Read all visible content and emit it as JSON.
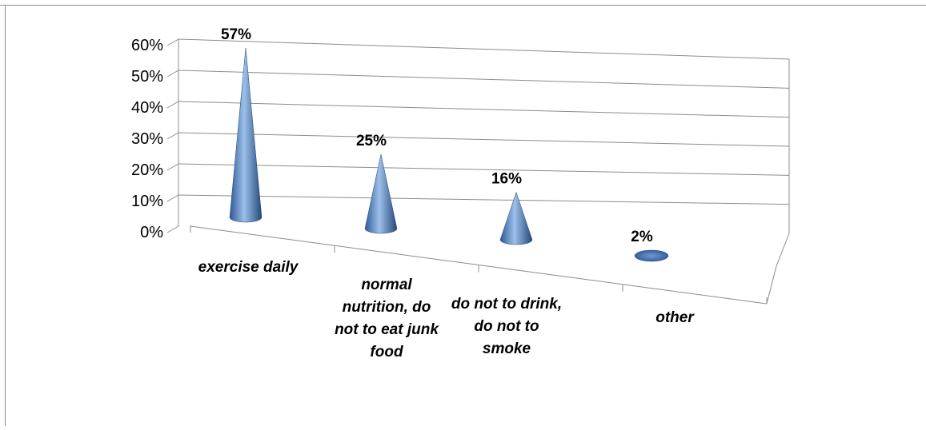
{
  "chart_data": {
    "type": "bar",
    "shape": "3d-cone",
    "categories": [
      [
        "exercise daily"
      ],
      [
        "normal",
        "nutrition, do",
        "not to eat junk",
        "food"
      ],
      [
        "do not to drink,",
        "do not to",
        "smoke"
      ],
      [
        "other"
      ]
    ],
    "values": [
      57,
      25,
      16,
      2
    ],
    "data_labels": [
      "57%",
      "25%",
      "16%",
      "2%"
    ],
    "ylim": [
      0,
      60
    ],
    "yticks": [
      "0%",
      "10%",
      "20%",
      "30%",
      "40%",
      "50%",
      "60%"
    ],
    "grid": true,
    "legend": "none",
    "colors": {
      "cone": "#4f81bd",
      "cone_dark": "#24477a",
      "cone_light": "#9cc0ea",
      "grid": "#8c8c8c"
    }
  }
}
